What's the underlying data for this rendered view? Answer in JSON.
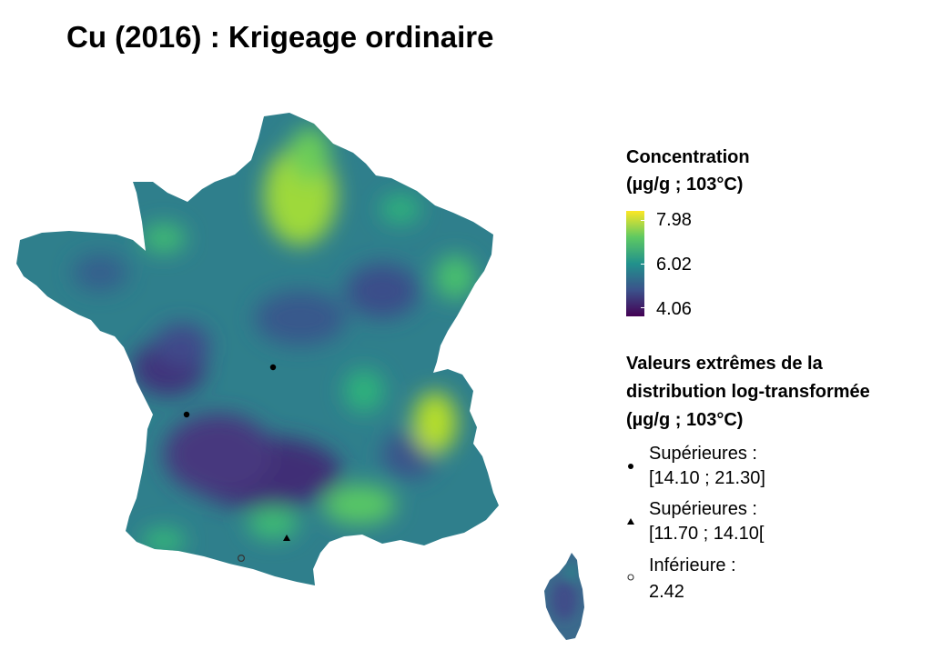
{
  "title": "Cu (2016) : Krigeage ordinaire",
  "legend_concentration": {
    "title_line1": "Concentration",
    "title_line2": "(µg/g ; 103°C)",
    "max_label": "7.98",
    "mid_label": "6.02",
    "min_label": "4.06",
    "colors": [
      "#fde725",
      "#5ec962",
      "#21918c",
      "#3b528b",
      "#440154"
    ]
  },
  "legend_extremes": {
    "title_line1": "Valeurs extrêmes de la",
    "title_line2": "distribution log-transformée",
    "title_line3": "(µg/g ; 103°C)",
    "items": [
      {
        "symbol": "filled-circle",
        "line1": "Supérieures :",
        "line2": "[14.10 ; 21.30]"
      },
      {
        "symbol": "filled-triangle",
        "line1": "Supérieures :",
        "line2": "[11.70 ; 14.10["
      },
      {
        "symbol": "open-circle",
        "line1": "Inférieure :",
        "line2": "2.42"
      }
    ]
  }
}
